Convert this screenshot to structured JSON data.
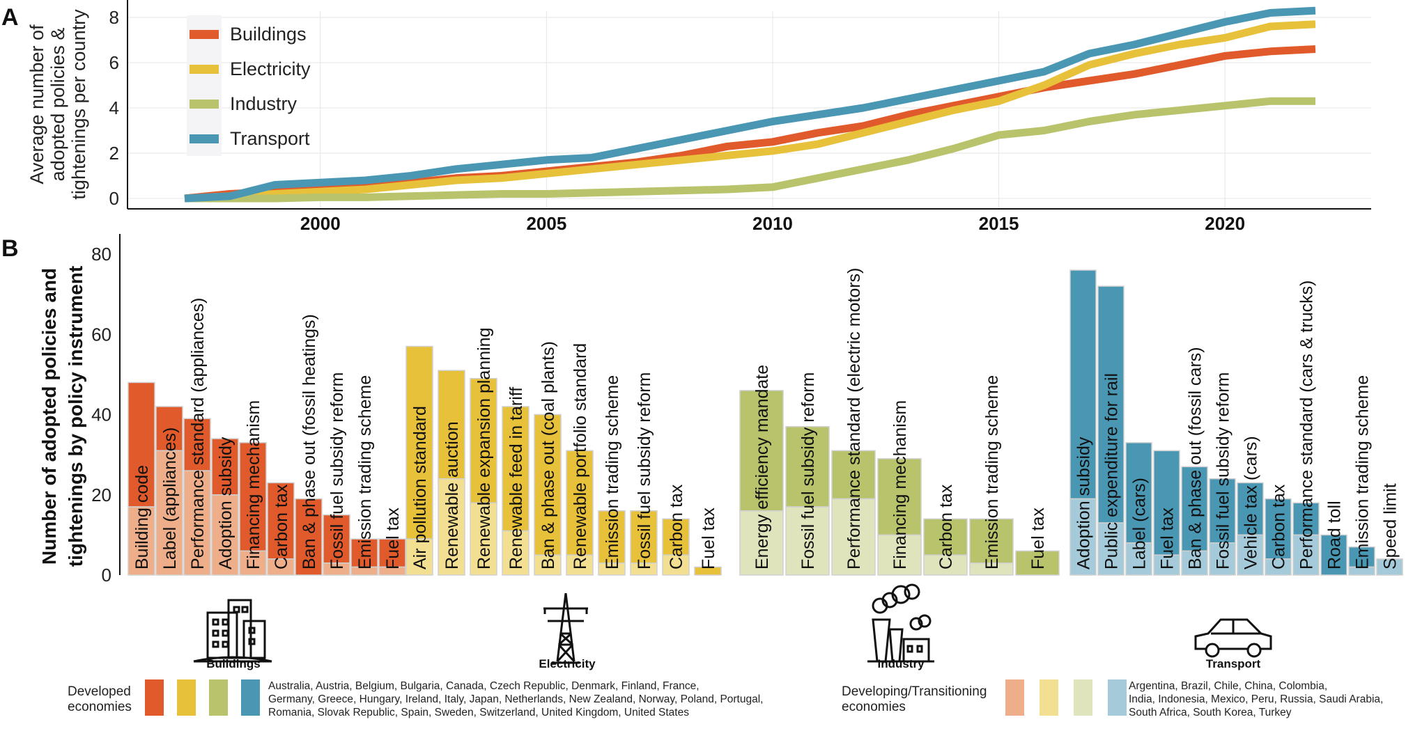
{
  "panels": {
    "a": "A",
    "b": "B"
  },
  "colors": {
    "Buildings": "#e05a2b",
    "Electricity": "#e8c13a",
    "Industry": "#b9c36b",
    "Transport": "#4a97b4",
    "Buildings_light": "#eeae8a",
    "Electricity_light": "#f2df92",
    "Industry_light": "#dfe4bd",
    "Transport_light": "#a5cad9"
  },
  "chart_data": [
    {
      "type": "line",
      "panel": "A",
      "ylabel": [
        "Average number of",
        "adopted policies &",
        "tightenings per country"
      ],
      "xlim": [
        1997,
        2022
      ],
      "ylim": [
        0,
        8
      ],
      "xticks": [
        2000,
        2005,
        2010,
        2015,
        2020
      ],
      "yticks": [
        0,
        2,
        4,
        6,
        8
      ],
      "legend_position": "top-left",
      "x": [
        1997,
        1998,
        1999,
        2000,
        2001,
        2002,
        2003,
        2004,
        2005,
        2006,
        2007,
        2008,
        2009,
        2010,
        2011,
        2012,
        2013,
        2014,
        2015,
        2016,
        2017,
        2018,
        2019,
        2020,
        2021,
        2022
      ],
      "series": [
        {
          "name": "Buildings",
          "values": [
            0,
            0.2,
            0.3,
            0.4,
            0.5,
            0.7,
            0.9,
            1.0,
            1.2,
            1.4,
            1.6,
            1.9,
            2.3,
            2.5,
            2.9,
            3.2,
            3.7,
            4.1,
            4.5,
            4.9,
            5.2,
            5.5,
            5.9,
            6.3,
            6.5,
            6.6
          ]
        },
        {
          "name": "Electricity",
          "values": [
            0,
            0.1,
            0.2,
            0.3,
            0.4,
            0.6,
            0.8,
            0.9,
            1.1,
            1.3,
            1.5,
            1.7,
            1.9,
            2.1,
            2.4,
            2.9,
            3.4,
            3.9,
            4.3,
            5.0,
            5.9,
            6.4,
            6.8,
            7.1,
            7.6,
            7.7
          ]
        },
        {
          "name": "Industry",
          "values": [
            0,
            0,
            0,
            0.05,
            0.05,
            0.1,
            0.15,
            0.2,
            0.2,
            0.25,
            0.3,
            0.35,
            0.4,
            0.5,
            0.9,
            1.3,
            1.7,
            2.2,
            2.8,
            3.0,
            3.4,
            3.7,
            3.9,
            4.1,
            4.3,
            4.3
          ]
        },
        {
          "name": "Transport",
          "values": [
            0,
            0.1,
            0.6,
            0.7,
            0.8,
            1.0,
            1.3,
            1.5,
            1.7,
            1.8,
            2.2,
            2.6,
            3.0,
            3.4,
            3.7,
            4.0,
            4.4,
            4.8,
            5.2,
            5.6,
            6.4,
            6.8,
            7.3,
            7.8,
            8.2,
            8.3
          ]
        }
      ]
    },
    {
      "type": "bar",
      "panel": "B",
      "stacked": true,
      "ylabel": [
        "Number of adopted policies and",
        "tightenings by policy instrument"
      ],
      "ylim": [
        0,
        85
      ],
      "yticks": [
        0,
        20,
        40,
        60,
        80
      ],
      "groups": [
        {
          "sector": "Buildings",
          "icon_label": "Buildings",
          "bars": [
            {
              "label": "Building code",
              "total": 48,
              "developing": 17
            },
            {
              "label": "Label (appliances)",
              "total": 42,
              "developing": 31
            },
            {
              "label": "Performance standard (appliances)",
              "total": 39,
              "developing": 26
            },
            {
              "label": "Adoption subsidy",
              "total": 34,
              "developing": 20
            },
            {
              "label": "Financing mechanism",
              "total": 33,
              "developing": 6
            },
            {
              "label": "Carbon tax",
              "total": 23,
              "developing": 4
            },
            {
              "label": "Ban & phase out (fossil heatings)",
              "total": 19,
              "developing": 0
            },
            {
              "label": "Fossil fuel subsidy reform",
              "total": 15,
              "developing": 3
            },
            {
              "label": "Emission trading scheme",
              "total": 9,
              "developing": 2
            },
            {
              "label": "Fuel tax",
              "total": 9,
              "developing": 2
            }
          ]
        },
        {
          "sector": "Electricity",
          "icon_label": "Electricity",
          "bars": [
            {
              "label": "Air pollution standard",
              "total": 57,
              "developing": 9
            },
            {
              "label": "Renewable auction",
              "total": 51,
              "developing": 24
            },
            {
              "label": "Renewable expansion planning",
              "total": 49,
              "developing": 18
            },
            {
              "label": "Renewable feed in tariff",
              "total": 42,
              "developing": 11
            },
            {
              "label": "Ban & phase out (coal plants)",
              "total": 40,
              "developing": 5
            },
            {
              "label": "Renewable portfolio standard",
              "total": 31,
              "developing": 5
            },
            {
              "label": "Emission trading scheme",
              "total": 16,
              "developing": 3
            },
            {
              "label": "Fossil fuel subsidy reform",
              "total": 16,
              "developing": 3
            },
            {
              "label": "Carbon tax",
              "total": 14,
              "developing": 5
            },
            {
              "label": "Fuel tax",
              "total": 2,
              "developing": 0
            }
          ]
        },
        {
          "sector": "Industry",
          "icon_label": "Industry",
          "bars": [
            {
              "label": "Energy efficiency mandate",
              "total": 46,
              "developing": 16
            },
            {
              "label": "Fossil fuel subsidy reform",
              "total": 37,
              "developing": 17
            },
            {
              "label": "Performance standard (electric motors)",
              "total": 31,
              "developing": 19
            },
            {
              "label": "Financing mechanism",
              "total": 29,
              "developing": 10
            },
            {
              "label": "Carbon tax",
              "total": 14,
              "developing": 5
            },
            {
              "label": "Emission trading scheme",
              "total": 14,
              "developing": 3
            },
            {
              "label": "Fuel tax",
              "total": 6,
              "developing": 0
            }
          ]
        },
        {
          "sector": "Transport",
          "icon_label": "Transport",
          "bars": [
            {
              "label": "Adoption subsidy",
              "total": 76,
              "developing": 19
            },
            {
              "label": "Public expenditure for rail",
              "total": 72,
              "developing": 13
            },
            {
              "label": "Label (cars)",
              "total": 33,
              "developing": 8
            },
            {
              "label": "Fuel tax",
              "total": 31,
              "developing": 5
            },
            {
              "label": "Ban & phase out (fossil cars)",
              "total": 27,
              "developing": 6
            },
            {
              "label": "Fossil fuel subsidy reform",
              "total": 24,
              "developing": 8
            },
            {
              "label": "Vehicle tax (cars)",
              "total": 23,
              "developing": 10
            },
            {
              "label": "Carbon tax",
              "total": 19,
              "developing": 4
            },
            {
              "label": "Performance standard (cars & trucks)",
              "total": 18,
              "developing": 10
            },
            {
              "label": "Road toll",
              "total": 10,
              "developing": 0
            },
            {
              "label": "Emission trading scheme",
              "total": 7,
              "developing": 2
            },
            {
              "label": "Speed limit",
              "total": 4,
              "developing": 4
            }
          ]
        }
      ]
    }
  ],
  "economy_legend": {
    "developed": {
      "label": [
        "Developed",
        "economies"
      ],
      "countries": [
        "Australia, Austria, Belgium, Bulgaria, Canada, Czech Republic, Denmark, Finland, France,",
        "Germany, Greece, Hungary, Ireland, Italy, Japan, Netherlands, New Zealand, Norway, Poland, Portugal,",
        "Romania, Slovak Republic, Spain, Sweden, Switzerland, United Kingdom, United States"
      ]
    },
    "developing": {
      "label": [
        "Developing/Transitioning",
        "economies"
      ],
      "countries": [
        "Argentina, Brazil, Chile, China, Colombia,",
        "India, Indonesia, Mexico, Peru, Russia, Saudi Arabia,",
        "South Africa, South Korea, Turkey"
      ]
    }
  },
  "icons": [
    "buildings-icon",
    "electricity-pylon-icon",
    "industry-factory-icon",
    "transport-car-icon"
  ]
}
